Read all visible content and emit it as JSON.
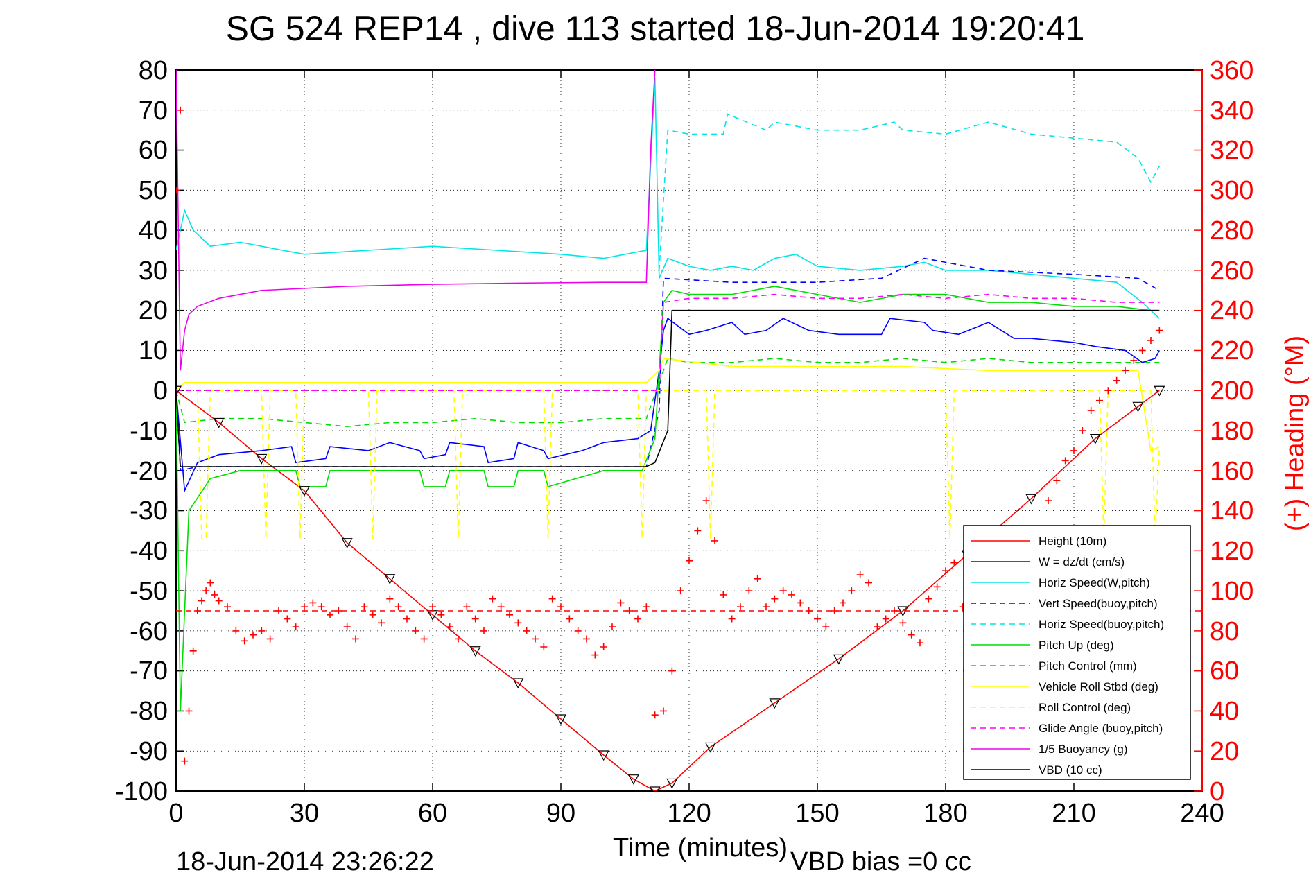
{
  "figure": {
    "title": "SG 524   REP14  , dive 113 started 18-Jun-2014 19:20:41",
    "footer_timestamp": "18-Jun-2014 23:26:22",
    "footer_vbd_bias": "VBD bias =0 cc"
  },
  "chart_data": {
    "type": "line",
    "xlabel": "Time (minutes)",
    "ylabel": "",
    "y2label": "(+) Heading (°M)",
    "xlim": [
      0,
      240
    ],
    "ylim": [
      -100,
      80
    ],
    "y2lim": [
      0,
      360
    ],
    "xticks": [
      "0",
      "30",
      "60",
      "90",
      "120",
      "150",
      "180",
      "210",
      "240"
    ],
    "yticks": [
      "80",
      "70",
      "60",
      "50",
      "40",
      "30",
      "20",
      "10",
      "0",
      "-10",
      "-20",
      "-30",
      "-40",
      "-50",
      "-60",
      "-70",
      "-80",
      "-90",
      "-100"
    ],
    "y2ticks": [
      "360",
      "340",
      "320",
      "300",
      "280",
      "260",
      "240",
      "220",
      "200",
      "180",
      "160",
      "140",
      "120",
      "100",
      "80",
      "60",
      "40",
      "20",
      "0"
    ],
    "grid": true,
    "legend_position": "bottom-right",
    "colors": {
      "height": "#ff0000",
      "w": "#0000ff",
      "horiz_speed": "#00e6e6",
      "pitch": "#00dd00",
      "roll": "#ffff00",
      "glide": "#ff00ff",
      "buoyancy": "#ee00ee",
      "vbd": "#000000",
      "heading": "#ff0000"
    },
    "series": [
      {
        "name": "Height (10m)",
        "style": "solid",
        "color": "#ff0000",
        "x": [
          0,
          10,
          20,
          30,
          40,
          50,
          60,
          70,
          80,
          90,
          100,
          107,
          112,
          116,
          125,
          140,
          155,
          170,
          185,
          200,
          215,
          225,
          230
        ],
        "y": [
          0,
          -8,
          -17,
          -25,
          -38,
          -47,
          -56,
          -65,
          -73,
          -82,
          -91,
          -97,
          -100,
          -98,
          -89,
          -78,
          -67,
          -55,
          -41,
          -27,
          -12,
          -4,
          0
        ]
      },
      {
        "name": "W = dz/dt (cm/s)",
        "style": "solid",
        "color": "#0000ff",
        "x": [
          0,
          2,
          5,
          10,
          20,
          27,
          28,
          35,
          36,
          45,
          50,
          57,
          58,
          63,
          64,
          72,
          73,
          79,
          80,
          86,
          87,
          95,
          100,
          108,
          111,
          113,
          114,
          115,
          120,
          124,
          130,
          133,
          138,
          142,
          148,
          155,
          165,
          167,
          175,
          177,
          183,
          190,
          196,
          200,
          210,
          215,
          222,
          226,
          229,
          230
        ],
        "y": [
          0,
          -25,
          -18,
          -16,
          -15,
          -14,
          -18,
          -17,
          -14,
          -15,
          -13,
          -15,
          -17,
          -16,
          -13,
          -14,
          -18,
          -17,
          -13,
          -15,
          -17,
          -15,
          -13,
          -12,
          -10,
          5,
          15,
          18,
          14,
          15,
          17,
          14,
          15,
          18,
          15,
          14,
          14,
          18,
          17,
          15,
          14,
          17,
          13,
          13,
          12,
          11,
          10,
          7,
          8,
          10
        ]
      },
      {
        "name": "Horiz Speed(W,pitch)",
        "style": "solid",
        "color": "#00e6e6",
        "x": [
          0,
          2,
          4,
          8,
          15,
          30,
          45,
          60,
          75,
          90,
          100,
          110,
          112,
          113,
          115,
          120,
          125,
          130,
          135,
          140,
          145,
          150,
          160,
          170,
          175,
          180,
          190,
          200,
          210,
          220,
          226,
          230
        ],
        "y": [
          35,
          45,
          40,
          36,
          37,
          34,
          35,
          36,
          35,
          34,
          33,
          35,
          78,
          28,
          33,
          31,
          30,
          31,
          30,
          33,
          34,
          31,
          30,
          31,
          32,
          30,
          30,
          29,
          28,
          27,
          22,
          18
        ]
      },
      {
        "name": "Vert Speed(buoy,pitch)",
        "style": "dashed",
        "color": "#0000ff",
        "x": [
          0,
          1,
          5,
          20,
          40,
          60,
          80,
          100,
          110,
          113,
          114,
          130,
          140,
          150,
          165,
          175,
          190,
          210,
          225,
          230
        ],
        "y": [
          0,
          -20,
          -19,
          -19,
          -19,
          -19,
          -19,
          -19,
          -19,
          -5,
          28,
          27,
          27,
          27,
          28,
          33,
          30,
          29,
          28,
          25
        ]
      },
      {
        "name": "Horiz Speed(buoy,pitch)",
        "style": "dashed",
        "color": "#00e6e6",
        "x": [
          113,
          115,
          120,
          128,
          129,
          138,
          140,
          150,
          160,
          168,
          170,
          180,
          190,
          200,
          210,
          220,
          225,
          228,
          230
        ],
        "y": [
          30,
          65,
          64,
          64,
          69,
          65,
          67,
          65,
          65,
          67,
          65,
          64,
          67,
          64,
          63,
          62,
          58,
          52,
          56
        ]
      },
      {
        "name": "Pitch Up (deg)",
        "style": "solid",
        "color": "#00dd00",
        "x": [
          0,
          1,
          3,
          8,
          15,
          20,
          25,
          28,
          29,
          35,
          36,
          45,
          50,
          57,
          58,
          63,
          64,
          72,
          73,
          79,
          80,
          86,
          87,
          100,
          109,
          112,
          113,
          114,
          116,
          120,
          130,
          140,
          150,
          160,
          170,
          180,
          190,
          200,
          210,
          220,
          228,
          230
        ],
        "y": [
          0,
          -80,
          -30,
          -22,
          -20,
          -20,
          -20,
          -20,
          -24,
          -24,
          -20,
          -20,
          -20,
          -20,
          -24,
          -24,
          -20,
          -20,
          -24,
          -24,
          -20,
          -20,
          -24,
          -20,
          -20,
          -12,
          5,
          22,
          25,
          24,
          24,
          26,
          24,
          22,
          24,
          24,
          22,
          22,
          21,
          21,
          20,
          20
        ]
      },
      {
        "name": "Pitch Control (mm)",
        "style": "dashed",
        "color": "#00dd00",
        "x": [
          0,
          2,
          10,
          20,
          30,
          40,
          50,
          60,
          70,
          80,
          90,
          100,
          110,
          113,
          115,
          120,
          130,
          140,
          150,
          160,
          170,
          180,
          190,
          200,
          210,
          220,
          230
        ],
        "y": [
          0,
          -8,
          -7,
          -7,
          -8,
          -9,
          -8,
          -8,
          -7,
          -8,
          -8,
          -7,
          -7,
          2,
          8,
          7,
          7,
          8,
          7,
          7,
          8,
          7,
          8,
          7,
          7,
          7,
          7
        ]
      },
      {
        "name": "Vehicle Roll Stbd (deg)",
        "style": "solid",
        "color": "#ffff00",
        "x": [
          0,
          2,
          5,
          20,
          40,
          60,
          80,
          100,
          110,
          113,
          114,
          130,
          150,
          170,
          190,
          210,
          225,
          228,
          230
        ],
        "y": [
          0,
          2,
          2,
          2,
          2,
          2,
          2,
          2,
          2,
          5,
          8,
          6,
          6,
          6,
          5,
          5,
          5,
          -15,
          -14
        ]
      },
      {
        "name": "Roll Control (deg)",
        "style": "dashed",
        "color": "#ffff00",
        "x": [
          0,
          5,
          6,
          7,
          8,
          20,
          21,
          22,
          28,
          29,
          30,
          45,
          46,
          47,
          65,
          66,
          67,
          86,
          87,
          88,
          108,
          109,
          110,
          113,
          114,
          124,
          125,
          126,
          180,
          181,
          182,
          216,
          217,
          218,
          228,
          229,
          230
        ],
        "y": [
          0,
          0,
          -37,
          -37,
          0,
          0,
          -37,
          0,
          0,
          -37,
          0,
          0,
          -37,
          0,
          0,
          -37,
          0,
          0,
          -37,
          0,
          0,
          -37,
          0,
          0,
          0,
          0,
          -37,
          0,
          0,
          -37,
          0,
          0,
          -37,
          0,
          0,
          -37,
          -14
        ]
      },
      {
        "name": "Glide Angle (buoy,pitch)",
        "style": "dashed",
        "color": "#ff00ff",
        "x": [
          0,
          113,
          114,
          120,
          130,
          140,
          150,
          160,
          170,
          180,
          190,
          200,
          210,
          220,
          230
        ],
        "y": [
          0,
          0,
          22,
          23,
          23,
          24,
          23,
          23,
          24,
          23,
          24,
          23,
          23,
          22,
          22
        ]
      },
      {
        "name": "1/5 Buoyancy (g)",
        "style": "solid",
        "color": "#ee00ee",
        "x": [
          0,
          1,
          2,
          3,
          5,
          10,
          20,
          40,
          60,
          80,
          100,
          110,
          111,
          112
        ],
        "y": [
          80,
          5,
          15,
          19,
          21,
          23,
          25,
          26,
          26.5,
          26.8,
          27,
          27,
          60,
          80
        ]
      },
      {
        "name": "VBD (10 cc)",
        "style": "solid",
        "color": "#000000",
        "x": [
          0,
          1,
          2,
          20,
          60,
          100,
          110,
          112,
          115,
          116,
          150,
          200,
          230
        ],
        "y": [
          0,
          -19,
          -19,
          -19,
          -19,
          -19,
          -19,
          -18,
          -10,
          20,
          20,
          20,
          20
        ]
      }
    ],
    "heading_series": {
      "name": "(+) Heading (°M)",
      "axis": "right",
      "marker": "+",
      "color": "#ff0000",
      "x": [
        0,
        1,
        2,
        3,
        4,
        5,
        6,
        7,
        8,
        9,
        10,
        12,
        14,
        16,
        18,
        20,
        22,
        24,
        26,
        28,
        30,
        32,
        34,
        36,
        38,
        40,
        42,
        44,
        46,
        48,
        50,
        52,
        54,
        56,
        58,
        60,
        62,
        64,
        66,
        68,
        70,
        72,
        74,
        76,
        78,
        80,
        82,
        84,
        86,
        88,
        90,
        92,
        94,
        96,
        98,
        100,
        102,
        104,
        106,
        108,
        110,
        112,
        114,
        116,
        118,
        120,
        122,
        124,
        126,
        128,
        130,
        132,
        134,
        136,
        138,
        140,
        142,
        144,
        146,
        148,
        150,
        152,
        154,
        156,
        158,
        160,
        162,
        164,
        166,
        168,
        170,
        172,
        174,
        176,
        178,
        180,
        182,
        184,
        186,
        188,
        190,
        192,
        194,
        196,
        198,
        200,
        202,
        204,
        206,
        208,
        210,
        212,
        214,
        216,
        218,
        220,
        222,
        224,
        226,
        228,
        230
      ],
      "y": [
        300,
        340,
        15,
        40,
        70,
        90,
        95,
        100,
        104,
        98,
        95,
        92,
        80,
        75,
        78,
        80,
        76,
        90,
        86,
        82,
        92,
        94,
        92,
        88,
        90,
        82,
        76,
        92,
        88,
        84,
        96,
        92,
        86,
        80,
        76,
        92,
        88,
        82,
        76,
        92,
        86,
        80,
        96,
        92,
        88,
        84,
        80,
        76,
        72,
        96,
        92,
        86,
        80,
        76,
        68,
        72,
        82,
        94,
        90,
        86,
        92,
        38,
        40,
        60,
        100,
        115,
        130,
        145,
        125,
        98,
        86,
        92,
        100,
        106,
        92,
        96,
        100,
        98,
        94,
        90,
        86,
        82,
        90,
        94,
        100,
        108,
        104,
        82,
        86,
        90,
        84,
        78,
        74,
        96,
        102,
        110,
        114,
        92,
        86,
        94,
        106,
        110,
        114,
        118,
        120,
        125,
        130,
        145,
        155,
        165,
        170,
        180,
        190,
        195,
        200,
        205,
        210,
        215,
        220,
        225,
        230
      ]
    },
    "heading_reference": {
      "y2": 90,
      "style": "dashed",
      "color": "#ff0000"
    }
  }
}
